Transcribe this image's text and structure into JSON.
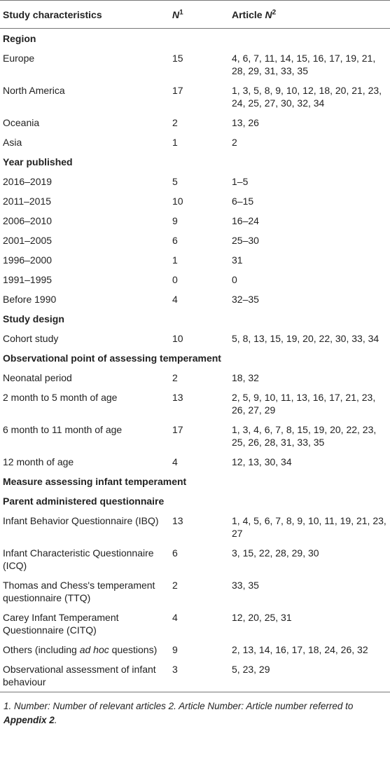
{
  "table": {
    "header": {
      "characteristics": "Study characteristics",
      "n": {
        "symbol": "N",
        "sup": "1"
      },
      "article": {
        "text": "Article",
        "symbol": "N",
        "sup": "2"
      }
    },
    "rows": [
      {
        "section": "Region"
      },
      {
        "label": "Europe",
        "n": 15,
        "articles": "4, 6, 7, 11, 14, 15, 16, 17, 19, 21, 28, 29, 31, 33, 35"
      },
      {
        "label": "North America",
        "n": 17,
        "articles": "1, 3, 5, 8, 9, 10, 12, 18, 20, 21, 23, 24, 25, 27, 30, 32, 34"
      },
      {
        "label": "Oceania",
        "n": 2,
        "articles": "13, 26"
      },
      {
        "label": "Asia",
        "n": 1,
        "articles": "2"
      },
      {
        "section": "Year published"
      },
      {
        "label": "2016–2019",
        "n": 5,
        "articles": "1–5"
      },
      {
        "label": "2011–2015",
        "n": 10,
        "articles": "6–15"
      },
      {
        "label": "2006–2010",
        "n": 9,
        "articles": "16–24"
      },
      {
        "label": "2001–2005",
        "n": 6,
        "articles": "25–30"
      },
      {
        "label": "1996–2000",
        "n": 1,
        "articles": "31"
      },
      {
        "label": "1991–1995",
        "n": 0,
        "articles": "0"
      },
      {
        "label": "Before 1990",
        "n": 4,
        "articles": "32–35"
      },
      {
        "section": "Study design"
      },
      {
        "label": "Cohort study",
        "n": 10,
        "articles": "5, 8, 13, 15, 19, 20, 22, 30, 33, 34"
      },
      {
        "section": "Observational point of assessing temperament"
      },
      {
        "label": "Neonatal period",
        "n": 2,
        "articles": "18, 32"
      },
      {
        "label": "2 month to 5 month of age",
        "n": 13,
        "articles": "2, 5, 9, 10, 11, 13, 16, 17, 21, 23, 26, 27, 29"
      },
      {
        "label": "6 month to 11 month of age",
        "n": 17,
        "articles": "1, 3, 4, 6, 7, 8, 15, 19, 20, 22, 23, 25, 26, 28, 31, 33, 35"
      },
      {
        "label": "12 month of age",
        "n": 4,
        "articles": "12, 13, 30, 34"
      },
      {
        "section": "Measure assessing infant temperament"
      },
      {
        "section": "Parent administered questionnaire"
      },
      {
        "label": "Infant Behavior Questionnaire (IBQ)",
        "n": 13,
        "articles": "1, 4, 5, 6, 7, 8, 9, 10, 11, 19, 21, 23, 27"
      },
      {
        "label": "Infant Characteristic Questionnaire (ICQ)",
        "n": 6,
        "articles": "3, 15, 22, 28, 29, 30"
      },
      {
        "label": "Thomas and Chess's temperament questionnaire (TTQ)",
        "n": 2,
        "articles": "33, 35"
      },
      {
        "label": "Carey Infant Temperament Questionnaire (CITQ)",
        "n": 4,
        "articles": "12, 20, 25, 31"
      },
      {
        "label": {
          "before": "Others (including ",
          "italic": "ad hoc",
          "after": " questions)"
        },
        "n": 9,
        "articles": "2, 13, 14, 16, 17, 18, 24, 26, 32"
      },
      {
        "label": "Observational assessment of infant behaviour",
        "n": 3,
        "articles": "5, 23, 29"
      }
    ]
  },
  "footnote": {
    "text": "1. Number: Number of relevant articles 2. Article Number: Article number referred to ",
    "link": "Appendix 2",
    "end": "."
  }
}
